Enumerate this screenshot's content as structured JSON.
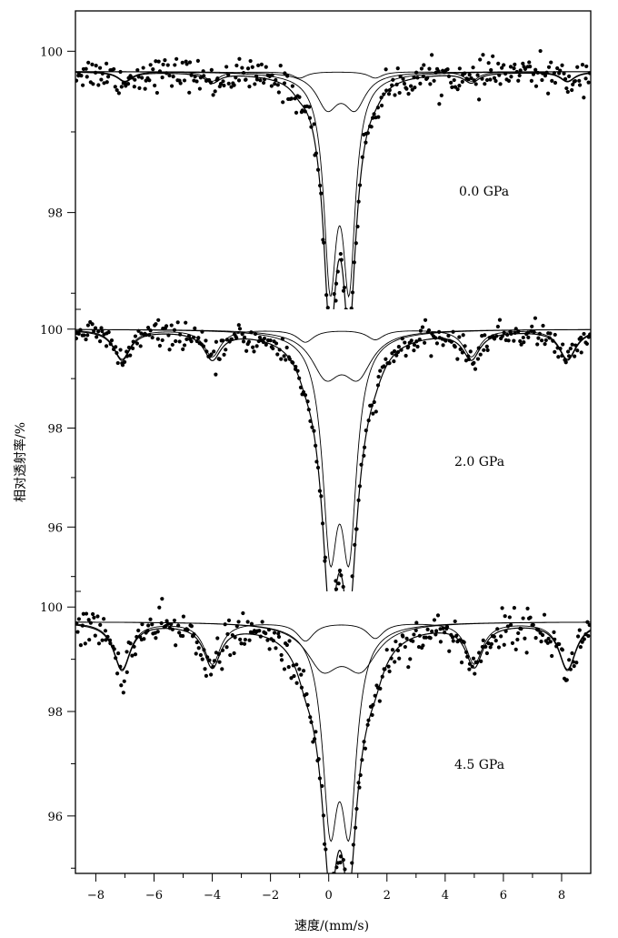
{
  "chart_data": {
    "type": "scatter",
    "xlabel": "速度/(mm/s)",
    "ylabel": "相对透射率/%",
    "xlim": [
      -8.7,
      9.0
    ],
    "x_ticks": [
      -8,
      -6,
      -4,
      -2,
      0,
      2,
      4,
      6,
      8
    ],
    "x_tick_labels": [
      "−8",
      "−6",
      "−4",
      "−2",
      "0",
      "2",
      "4",
      "6",
      "8"
    ],
    "grid": false,
    "panels": [
      {
        "label": "0.0 GPa",
        "ylim": [
          96.8,
          100.5
        ],
        "y_ticks": [
          98,
          100
        ],
        "y_tick_labels": [
          "98",
          "100"
        ],
        "baseline": 99.75,
        "components": [
          {
            "name": "doublet-1",
            "lines": [
              {
                "center": 0.05,
                "depth": 2.45,
                "width": 0.26
              },
              {
                "center": 0.7,
                "depth": 2.45,
                "width": 0.26
              }
            ]
          },
          {
            "name": "doublet-2",
            "lines": [
              {
                "center": -0.05,
                "depth": 0.42,
                "width": 0.45
              },
              {
                "center": 0.9,
                "depth": 0.42,
                "width": 0.45
              }
            ]
          },
          {
            "name": "sextet-1",
            "lines": [
              {
                "center": -7.0,
                "depth": 0.12,
                "width": 0.3
              },
              {
                "center": -4.0,
                "depth": 0.12,
                "width": 0.3
              },
              {
                "center": -1.0,
                "depth": 0.08,
                "width": 0.3
              },
              {
                "center": 1.6,
                "depth": 0.08,
                "width": 0.3
              },
              {
                "center": 4.9,
                "depth": 0.12,
                "width": 0.3
              },
              {
                "center": 8.2,
                "depth": 0.12,
                "width": 0.3
              }
            ]
          }
        ],
        "noise": 0.1,
        "n_points": 330
      },
      {
        "label": "2.0 GPa",
        "ylim": [
          94.7,
          100.4
        ],
        "y_ticks": [
          96,
          98,
          100
        ],
        "y_tick_labels": [
          "96",
          "98",
          "100"
        ],
        "baseline": 100.0,
        "components": [
          {
            "name": "doublet-1",
            "lines": [
              {
                "center": 0.05,
                "depth": 4.0,
                "width": 0.32
              },
              {
                "center": 0.7,
                "depth": 4.0,
                "width": 0.32
              }
            ]
          },
          {
            "name": "doublet-2",
            "lines": [
              {
                "center": -0.1,
                "depth": 0.85,
                "width": 0.6
              },
              {
                "center": 1.0,
                "depth": 0.85,
                "width": 0.6
              }
            ]
          },
          {
            "name": "sextet-1",
            "lines": [
              {
                "center": -7.1,
                "depth": 0.6,
                "width": 0.35
              },
              {
                "center": -4.0,
                "depth": 0.55,
                "width": 0.35
              },
              {
                "center": -0.8,
                "depth": 0.25,
                "width": 0.35
              },
              {
                "center": 1.6,
                "depth": 0.2,
                "width": 0.35
              },
              {
                "center": 4.9,
                "depth": 0.55,
                "width": 0.35
              },
              {
                "center": 8.2,
                "depth": 0.6,
                "width": 0.35
              }
            ]
          }
        ],
        "noise": 0.13,
        "n_points": 330
      },
      {
        "label": "4.5 GPa",
        "ylim": [
          94.9,
          100.3
        ],
        "y_ticks": [
          96,
          98,
          100
        ],
        "y_tick_labels": [
          "96",
          "98",
          "100"
        ],
        "baseline": 99.72,
        "components": [
          {
            "name": "doublet-1",
            "lines": [
              {
                "center": 0.05,
                "depth": 3.5,
                "width": 0.32
              },
              {
                "center": 0.7,
                "depth": 3.5,
                "width": 0.32
              }
            ]
          },
          {
            "name": "doublet-2",
            "lines": [
              {
                "center": -0.2,
                "depth": 0.8,
                "width": 0.7
              },
              {
                "center": 1.1,
                "depth": 0.8,
                "width": 0.7
              }
            ]
          },
          {
            "name": "sextet-1",
            "lines": [
              {
                "center": -7.1,
                "depth": 0.9,
                "width": 0.35
              },
              {
                "center": -4.0,
                "depth": 0.8,
                "width": 0.35
              },
              {
                "center": -0.8,
                "depth": 0.35,
                "width": 0.35
              },
              {
                "center": 1.6,
                "depth": 0.3,
                "width": 0.35
              },
              {
                "center": 5.0,
                "depth": 0.8,
                "width": 0.35
              },
              {
                "center": 8.2,
                "depth": 0.9,
                "width": 0.35
              }
            ]
          }
        ],
        "noise": 0.18,
        "n_points": 340
      }
    ]
  }
}
